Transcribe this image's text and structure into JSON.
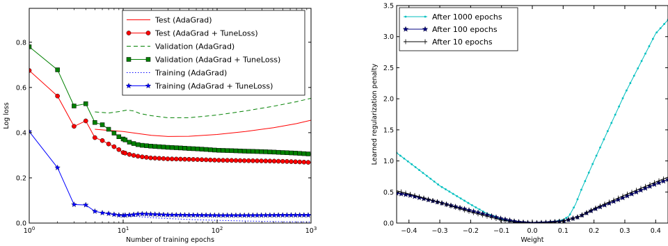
{
  "chart_data": [
    {
      "type": "line",
      "xlabel": "Number of training epochs",
      "ylabel": "Log loss",
      "xscale": "log",
      "xlim": [
        1,
        1000
      ],
      "ylim": [
        0,
        0.95
      ],
      "xticks": [
        1,
        10,
        100,
        1000
      ],
      "xtick_labels": [
        {
          "base": "10",
          "exp": "0"
        },
        {
          "base": "10",
          "exp": "1"
        },
        {
          "base": "10",
          "exp": "2"
        },
        {
          "base": "10",
          "exp": "3"
        }
      ],
      "yticks": [
        0.0,
        0.2,
        0.4,
        0.6,
        0.8
      ],
      "ytick_labels": [
        "0.0",
        "0.2",
        "0.4",
        "0.6",
        "0.8"
      ],
      "grid": false,
      "legend_position": "top-right",
      "series": [
        {
          "name": "Test (AdaGrad)",
          "color": "#ff0000",
          "style": "solid",
          "marker": "none",
          "x": [
            5,
            7,
            10,
            15,
            20,
            30,
            50,
            100,
            200,
            400,
            700,
            1000
          ],
          "y": [
            0.415,
            0.41,
            0.405,
            0.395,
            0.388,
            0.383,
            0.384,
            0.392,
            0.405,
            0.422,
            0.44,
            0.455
          ]
        },
        {
          "name": "Test (AdaGrad + TuneLoss)",
          "color": "#ff0000",
          "style": "solid",
          "marker": "circle",
          "x": [
            1,
            2,
            3,
            4,
            5,
            6,
            7,
            8,
            9,
            10,
            12,
            15,
            20,
            30,
            50,
            100,
            200,
            500,
            1000
          ],
          "y": [
            0.675,
            0.562,
            0.428,
            0.452,
            0.378,
            0.365,
            0.35,
            0.338,
            0.325,
            0.312,
            0.302,
            0.294,
            0.288,
            0.284,
            0.282,
            0.278,
            0.276,
            0.273,
            0.268
          ]
        },
        {
          "name": "Validation (AdaGrad)",
          "color": "#008000",
          "style": "dashed",
          "marker": "none",
          "x": [
            5,
            7,
            9,
            11,
            13,
            15,
            20,
            30,
            50,
            100,
            200,
            400,
            700,
            1000
          ],
          "y": [
            0.492,
            0.487,
            0.493,
            0.5,
            0.496,
            0.485,
            0.475,
            0.466,
            0.466,
            0.478,
            0.496,
            0.517,
            0.537,
            0.552
          ]
        },
        {
          "name": "Validation (AdaGrad + TuneLoss)",
          "color": "#008000",
          "style": "solid",
          "marker": "square",
          "x": [
            1,
            2,
            3,
            4,
            5,
            6,
            7,
            8,
            9,
            10,
            12,
            15,
            20,
            30,
            50,
            100,
            200,
            500,
            1000
          ],
          "y": [
            0.78,
            0.678,
            0.518,
            0.528,
            0.445,
            0.435,
            0.415,
            0.398,
            0.382,
            0.372,
            0.355,
            0.345,
            0.34,
            0.335,
            0.33,
            0.322,
            0.318,
            0.312,
            0.305
          ]
        },
        {
          "name": "Training (AdaGrad)",
          "color": "#0000ff",
          "style": "dotted",
          "marker": "none",
          "x": [
            5,
            7,
            10,
            15,
            20,
            30,
            50,
            100,
            200,
            500,
            1000
          ],
          "y": [
            0.052,
            0.04,
            0.033,
            0.028,
            0.024,
            0.02,
            0.016,
            0.012,
            0.009,
            0.006,
            0.005
          ]
        },
        {
          "name": "Training (AdaGrad + TuneLoss)",
          "color": "#0000ff",
          "style": "solid",
          "marker": "star",
          "x": [
            1,
            2,
            3,
            4,
            5,
            6,
            7,
            8,
            9,
            10,
            12,
            15,
            20,
            30,
            50,
            100,
            200,
            500,
            1000
          ],
          "y": [
            0.405,
            0.245,
            0.082,
            0.08,
            0.052,
            0.045,
            0.042,
            0.038,
            0.035,
            0.034,
            0.036,
            0.041,
            0.039,
            0.036,
            0.035,
            0.034,
            0.034,
            0.035,
            0.035
          ]
        }
      ]
    },
    {
      "type": "line",
      "xlabel": "Weight",
      "ylabel": "Learned regularization penalty",
      "xlim": [
        -0.44,
        0.44
      ],
      "ylim": [
        0,
        3.5
      ],
      "xticks": [
        -0.4,
        -0.3,
        -0.2,
        -0.1,
        0.0,
        0.1,
        0.2,
        0.3,
        0.4
      ],
      "xtick_labels": [
        "−0.4",
        "−0.3",
        "−0.2",
        "−0.1",
        "0.0",
        "0.1",
        "0.2",
        "0.3",
        "0.4"
      ],
      "yticks": [
        0.0,
        0.5,
        1.0,
        1.5,
        2.0,
        2.5,
        3.0,
        3.5
      ],
      "ytick_labels": [
        "0.0",
        "0.5",
        "1.0",
        "1.5",
        "2.0",
        "2.5",
        "3.0",
        "3.5"
      ],
      "grid": false,
      "legend_position": "top-left",
      "series": [
        {
          "name": "After 1000 epochs",
          "color": "#00bfbf",
          "style": "solid",
          "marker": "dot",
          "x": [
            -0.44,
            -0.4,
            -0.3,
            -0.2,
            -0.15,
            -0.1,
            -0.05,
            0.0,
            0.05,
            0.1,
            0.12,
            0.14,
            0.16,
            0.2,
            0.3,
            0.4,
            0.44
          ],
          "y": [
            1.13,
            0.98,
            0.6,
            0.3,
            0.16,
            0.06,
            0.01,
            0.0,
            0.01,
            0.05,
            0.12,
            0.3,
            0.55,
            1.0,
            2.08,
            3.05,
            3.27
          ]
        },
        {
          "name": "After 100 epochs",
          "color": "#000080",
          "style": "solid",
          "marker": "star",
          "x": [
            -0.44,
            -0.4,
            -0.3,
            -0.2,
            -0.1,
            -0.05,
            0.0,
            0.05,
            0.1,
            0.15,
            0.2,
            0.3,
            0.4,
            0.44
          ],
          "y": [
            0.48,
            0.45,
            0.33,
            0.2,
            0.07,
            0.02,
            0.0,
            0.01,
            0.03,
            0.1,
            0.22,
            0.42,
            0.63,
            0.7
          ]
        },
        {
          "name": "After 10 epochs",
          "color": "#000000",
          "style": "solid",
          "marker": "tick",
          "x": [
            -0.44,
            -0.4,
            -0.3,
            -0.2,
            -0.1,
            -0.05,
            0.0,
            0.05,
            0.1,
            0.15,
            0.2,
            0.3,
            0.4,
            0.44
          ],
          "y": [
            0.52,
            0.47,
            0.33,
            0.18,
            0.05,
            0.01,
            0.0,
            0.005,
            0.03,
            0.1,
            0.23,
            0.45,
            0.66,
            0.74
          ]
        }
      ]
    }
  ]
}
